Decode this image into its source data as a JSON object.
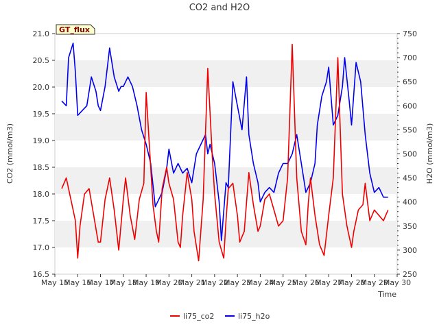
{
  "chart_data": {
    "type": "line",
    "title": "CO2 and H2O",
    "xlabel": "Time",
    "ylabel_left": "CO2 (mmol/m3)",
    "ylabel_right": "H2O (mmol/m3)",
    "ylim_left": [
      16.5,
      21.0
    ],
    "ylim_right": [
      250,
      750
    ],
    "xlim": [
      15,
      30
    ],
    "x_ticks": [
      "May 15",
      "May 16",
      "May 17",
      "May 18",
      "May 19",
      "May 20",
      "May 21",
      "May 22",
      "May 23",
      "May 24",
      "May 25",
      "May 26",
      "May 27",
      "May 28",
      "May 29",
      "May 30"
    ],
    "y_ticks_left": [
      "16.5",
      "17.0",
      "17.5",
      "18.0",
      "18.5",
      "19.0",
      "19.5",
      "20.0",
      "20.5",
      "21.0"
    ],
    "y_ticks_right": [
      "250",
      "300",
      "350",
      "400",
      "450",
      "500",
      "550",
      "600",
      "650",
      "700",
      "750"
    ],
    "site_label": "GT_flux",
    "grid": "horizontal bands",
    "legend_position": "bottom",
    "series": [
      {
        "name": "li75_co2",
        "axis": "left",
        "color": "#ee0000",
        "x": [
          15.3,
          15.5,
          15.7,
          15.9,
          16.0,
          16.1,
          16.3,
          16.5,
          16.7,
          16.9,
          17.0,
          17.2,
          17.4,
          17.6,
          17.8,
          18.0,
          18.1,
          18.3,
          18.5,
          18.7,
          18.9,
          19.0,
          19.3,
          19.45,
          19.55,
          19.7,
          19.9,
          20.0,
          20.2,
          20.4,
          20.5,
          20.6,
          20.8,
          21.0,
          21.1,
          21.3,
          21.5,
          21.7,
          21.9,
          22.0,
          22.2,
          22.4,
          22.5,
          22.6,
          22.8,
          23.0,
          23.1,
          23.3,
          23.5,
          23.7,
          23.9,
          24.0,
          24.2,
          24.4,
          24.6,
          24.8,
          25.0,
          25.2,
          25.4,
          25.6,
          25.8,
          26.0,
          26.1,
          26.2,
          26.4,
          26.6,
          26.8,
          27.0,
          27.2,
          27.4,
          27.6,
          27.8,
          28.0,
          28.1,
          28.3,
          28.5,
          28.6,
          28.8,
          29.0,
          29.2,
          29.4,
          29.6
        ],
        "values": [
          18.1,
          18.3,
          17.9,
          17.5,
          16.8,
          17.4,
          18.0,
          18.1,
          17.6,
          17.1,
          17.1,
          17.9,
          18.3,
          17.7,
          16.95,
          17.9,
          18.3,
          17.6,
          17.15,
          17.9,
          18.2,
          19.9,
          17.8,
          17.3,
          17.1,
          18.1,
          18.5,
          18.2,
          17.9,
          17.1,
          17.0,
          17.6,
          18.4,
          17.9,
          17.3,
          16.75,
          17.9,
          20.35,
          18.7,
          18.0,
          17.1,
          16.8,
          17.5,
          18.1,
          18.2,
          17.6,
          17.1,
          17.3,
          18.4,
          17.8,
          17.3,
          17.4,
          17.9,
          18.0,
          17.7,
          17.4,
          17.5,
          18.3,
          20.8,
          18.3,
          17.3,
          17.05,
          17.8,
          18.3,
          17.6,
          17.05,
          16.85,
          17.6,
          18.3,
          20.55,
          18.0,
          17.4,
          17.0,
          17.3,
          17.7,
          17.8,
          18.2,
          17.5,
          17.7,
          17.6,
          17.5,
          17.7
        ]
      },
      {
        "name": "li75_h2o",
        "axis": "right",
        "color": "#0000ee",
        "x": [
          15.3,
          15.5,
          15.6,
          15.8,
          15.9,
          16.0,
          16.2,
          16.4,
          16.6,
          16.8,
          16.9,
          17.0,
          17.2,
          17.4,
          17.6,
          17.8,
          17.9,
          18.0,
          18.2,
          18.4,
          18.6,
          18.8,
          19.0,
          19.2,
          19.4,
          19.5,
          19.7,
          19.9,
          20.0,
          20.2,
          20.4,
          20.6,
          20.8,
          21.0,
          21.2,
          21.4,
          21.6,
          21.7,
          21.8,
          22.0,
          22.2,
          22.3,
          22.5,
          22.6,
          22.8,
          23.0,
          23.2,
          23.4,
          23.5,
          23.7,
          23.9,
          24.0,
          24.2,
          24.4,
          24.6,
          24.8,
          25.0,
          25.2,
          25.4,
          25.6,
          25.8,
          26.0,
          26.2,
          26.4,
          26.5,
          26.7,
          26.9,
          27.0,
          27.2,
          27.4,
          27.6,
          27.7,
          27.9,
          28.0,
          28.2,
          28.4,
          28.6,
          28.8,
          29.0,
          29.2,
          29.4,
          29.6
        ],
        "values": [
          610,
          600,
          700,
          730,
          670,
          580,
          590,
          600,
          660,
          630,
          600,
          590,
          640,
          720,
          660,
          630,
          640,
          640,
          660,
          640,
          600,
          550,
          520,
          480,
          390,
          400,
          420,
          470,
          510,
          460,
          480,
          460,
          470,
          440,
          500,
          520,
          540,
          500,
          520,
          480,
          400,
          320,
          440,
          430,
          650,
          600,
          550,
          660,
          540,
          480,
          440,
          400,
          420,
          430,
          420,
          460,
          480,
          480,
          500,
          540,
          480,
          420,
          440,
          480,
          560,
          620,
          650,
          680,
          560,
          580,
          640,
          700,
          610,
          560,
          690,
          650,
          540,
          460,
          420,
          430,
          410,
          410
        ]
      }
    ]
  },
  "legend": {
    "co2_label": "li75_co2",
    "h2o_label": "li75_h2o"
  }
}
